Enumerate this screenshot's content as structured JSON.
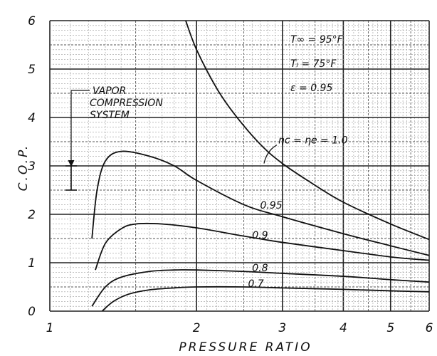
{
  "chart_data": {
    "type": "line",
    "xlabel": "PRESSURE RATIO",
    "ylabel": "C.O.P.",
    "x_scale": "log",
    "xlim": [
      1,
      6
    ],
    "ylim": [
      0,
      6
    ],
    "x_ticks": [
      1,
      2,
      3,
      4,
      5,
      6
    ],
    "x_tick_labels": [
      "1",
      "2",
      "3",
      "4",
      "5",
      "6"
    ],
    "y_ticks": [
      0,
      1,
      2,
      3,
      4,
      5,
      6
    ],
    "y_tick_labels": [
      "0",
      "1",
      "2",
      "3",
      "4",
      "5",
      "6"
    ],
    "grid": true,
    "conditions": [
      "T∞ = 95°F",
      "Tₗ = 75°F",
      "ε = 0.95"
    ],
    "series": [
      {
        "name": "ηc = ηe = 1.0",
        "x": [
          1.9,
          2.0,
          2.2,
          2.4,
          2.7,
          3.0,
          3.5,
          4.0,
          5.0,
          6.0
        ],
        "y": [
          6.0,
          5.4,
          4.6,
          4.05,
          3.45,
          3.05,
          2.6,
          2.25,
          1.8,
          1.48
        ]
      },
      {
        "name": "0.95",
        "x": [
          1.22,
          1.25,
          1.3,
          1.4,
          1.6,
          1.8,
          2.0,
          2.5,
          3.0,
          4.0,
          5.0,
          6.0
        ],
        "y": [
          1.5,
          2.5,
          3.1,
          3.3,
          3.2,
          3.0,
          2.7,
          2.2,
          1.95,
          1.6,
          1.35,
          1.15
        ]
      },
      {
        "name": "0.9",
        "x": [
          1.24,
          1.3,
          1.4,
          1.5,
          1.7,
          2.0,
          2.5,
          3.0,
          4.0,
          5.0,
          6.0
        ],
        "y": [
          0.85,
          1.4,
          1.7,
          1.8,
          1.8,
          1.72,
          1.55,
          1.42,
          1.25,
          1.12,
          1.05
        ]
      },
      {
        "name": "0.8",
        "x": [
          1.22,
          1.3,
          1.4,
          1.6,
          1.8,
          2.0,
          2.5,
          3.0,
          4.0,
          5.0,
          6.0
        ],
        "y": [
          0.1,
          0.5,
          0.7,
          0.82,
          0.85,
          0.85,
          0.82,
          0.78,
          0.72,
          0.65,
          0.6
        ]
      },
      {
        "name": "0.7",
        "x": [
          1.28,
          1.35,
          1.45,
          1.6,
          1.8,
          2.0,
          2.5,
          3.0,
          4.0,
          5.0,
          6.0
        ],
        "y": [
          0.0,
          0.2,
          0.35,
          0.44,
          0.48,
          0.5,
          0.5,
          0.48,
          0.45,
          0.42,
          0.4
        ]
      }
    ],
    "annotations": {
      "vapor_label": [
        "VAPOR",
        "COMPRESSION",
        "SYSTEM"
      ],
      "vapor_range": [
        2.5,
        3.0
      ]
    }
  }
}
